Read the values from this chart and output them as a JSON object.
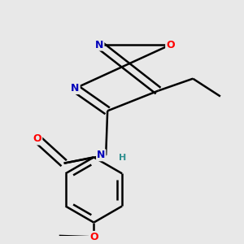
{
  "background_color": "#e8e8e8",
  "bond_color": "#000000",
  "atom_colors": {
    "O": "#ff0000",
    "N": "#0000bb",
    "C": "#000000",
    "H": "#2f8f8f"
  },
  "figsize": [
    3.0,
    3.0
  ],
  "dpi": 100
}
